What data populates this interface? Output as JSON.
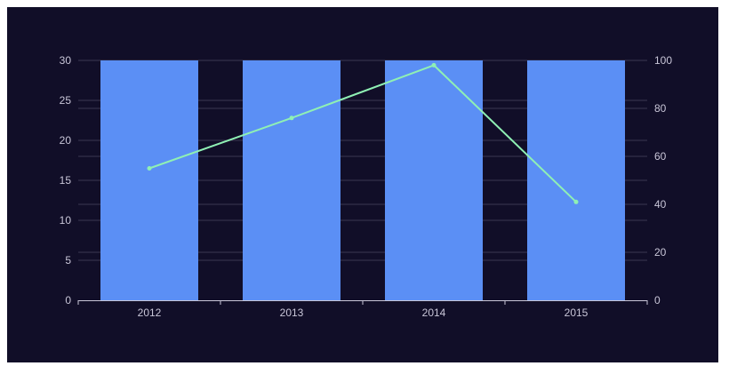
{
  "chart_data": {
    "type": "bar",
    "categories": [
      "2012",
      "2013",
      "2014",
      "2015"
    ],
    "series": [
      {
        "type": "bar",
        "axis": "left",
        "values": [
          30,
          30,
          30,
          30
        ]
      },
      {
        "type": "line",
        "axis": "right",
        "values": [
          55,
          76,
          98,
          41
        ]
      }
    ],
    "y_left": {
      "ylim": [
        0,
        30
      ],
      "ticks": [
        0,
        5,
        10,
        15,
        20,
        25,
        30
      ]
    },
    "y_right": {
      "ylim": [
        0,
        100
      ],
      "ticks": [
        0,
        20,
        40,
        60,
        80,
        100
      ]
    },
    "grid": true,
    "colors": {
      "background": "#110e28",
      "bar": "#5b8ff5",
      "line": "#8ff0b4",
      "grid": "#3a3852",
      "text": "#c9c6d8"
    }
  }
}
